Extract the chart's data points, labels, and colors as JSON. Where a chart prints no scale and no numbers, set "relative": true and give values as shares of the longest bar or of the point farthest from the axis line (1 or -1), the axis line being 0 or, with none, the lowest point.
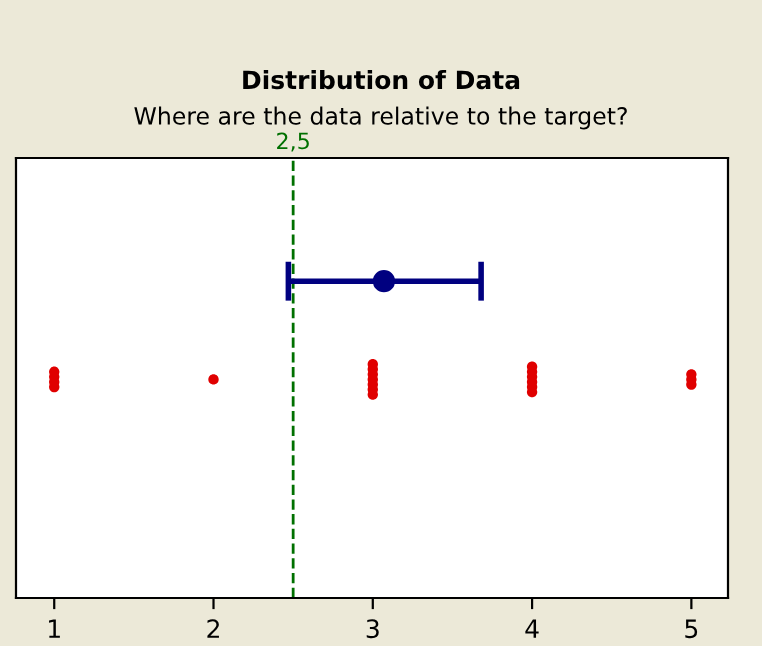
{
  "chart_data": {
    "type": "scatter",
    "title": "Distribution of Data",
    "subtitle": "Where are the data relative to the target?",
    "relative": true,
    "tick_labels": "x",
    "marker": "circle",
    "grid": false,
    "legend": false,
    "xlim": [
      0.76,
      5.23
    ],
    "xticks": [
      1,
      2,
      3,
      4,
      5
    ],
    "series": [
      {
        "color": "#e00000",
        "x": [
          1,
          1,
          1,
          1,
          2,
          3,
          3,
          3,
          3,
          3,
          3,
          3,
          4,
          4,
          4,
          4,
          4,
          4,
          5,
          5,
          5
        ],
        "values": [
          0.666,
          0.682,
          0.698,
          0.714,
          0.69,
          0.642,
          0.658,
          0.674,
          0.69,
          0.706,
          0.722,
          0.738,
          0.65,
          0.666,
          0.682,
          0.698,
          0.714,
          0.73,
          0.674,
          0.69,
          0.706
        ]
      },
      {
        "color": "#000080",
        "x": [
          3.07
        ],
        "values": [
          1
        ],
        "xerrors": [
          [
            2.47,
            3.68
          ]
        ]
      }
    ],
    "ref_lines": [
      {
        "axis": "x",
        "value": 2.5,
        "label": "2,5",
        "color": "#007000",
        "line_style": "dashed"
      }
    ]
  }
}
